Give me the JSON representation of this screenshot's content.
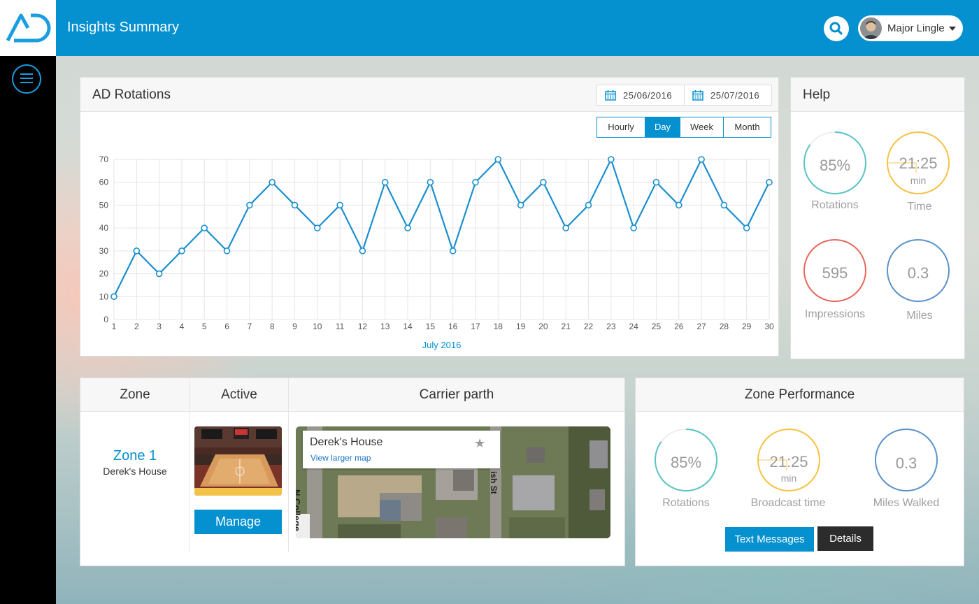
{
  "header": {
    "title": "Insights Summary",
    "user_name": "Major Lingle"
  },
  "rotations": {
    "title": "AD Rotations",
    "date_from": "25/06/2016",
    "date_to": "25/07/2016",
    "ranges": [
      "Hourly",
      "Day",
      "Week",
      "Month"
    ],
    "active_range": "Day"
  },
  "chart_data": {
    "type": "line",
    "title": "",
    "xlabel": "July 2016",
    "ylabel": "",
    "x": [
      1,
      2,
      3,
      4,
      5,
      6,
      7,
      8,
      9,
      10,
      11,
      12,
      13,
      14,
      15,
      16,
      17,
      18,
      19,
      20,
      21,
      22,
      23,
      24,
      25,
      26,
      27,
      28,
      29,
      30
    ],
    "values": [
      10,
      30,
      20,
      30,
      40,
      30,
      50,
      60,
      50,
      40,
      50,
      30,
      60,
      40,
      60,
      30,
      60,
      70,
      50,
      60,
      40,
      50,
      70,
      40,
      60,
      50,
      70,
      50,
      40,
      60
    ],
    "yticks": [
      0,
      10,
      20,
      30,
      40,
      50,
      60,
      70
    ],
    "ylim": [
      0,
      70
    ],
    "xlim": [
      1,
      30
    ],
    "grid": true,
    "line_color": "#1a8fcf"
  },
  "help": {
    "title": "Help",
    "stats": [
      {
        "value": "85%",
        "label": "Rotations",
        "color": "#5bc4c6",
        "fill": 0.85
      },
      {
        "value": "21:25",
        "unit": "min",
        "label": "Time",
        "color": "#f5c343"
      },
      {
        "value": "595",
        "label": "Impressions",
        "color": "#e8675a"
      },
      {
        "value": "0.3",
        "label": "Miles",
        "color": "#5b93c9"
      }
    ]
  },
  "zone_table": {
    "headers": [
      "Zone",
      "Active",
      "Carrier parth"
    ],
    "zone_name": "Zone 1",
    "zone_sub": "Derek's House",
    "manage_label": "Manage",
    "map": {
      "place": "Derek's House",
      "link": "View larger map",
      "street_1": "N College",
      "street_2": "ish St"
    }
  },
  "zone_perf": {
    "title": "Zone Performance",
    "stats": [
      {
        "value": "85%",
        "label": "Rotations",
        "color": "#5bc4c6",
        "fill": 0.85
      },
      {
        "value": "21:25",
        "unit": "min",
        "label": "Broadcast time",
        "color": "#f5c343"
      },
      {
        "value": "0.3",
        "label": "Miles Walked",
        "color": "#5b93c9"
      }
    ],
    "btn_text_messages": "Text Messages",
    "btn_details": "Details"
  }
}
